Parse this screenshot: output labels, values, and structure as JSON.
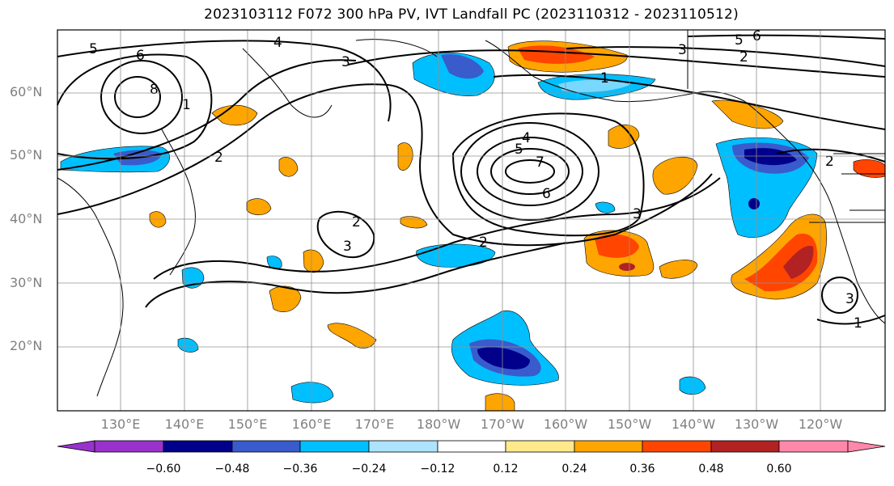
{
  "title": "2023103112 F072 300 hPa PV, IVT Landfall PC (2023110312 - 2023110512)",
  "latitude_labels": [
    "60°N",
    "50°N",
    "40°N",
    "30°N",
    "20°N"
  ],
  "longitude_labels": [
    "130°E",
    "140°E",
    "150°E",
    "160°E",
    "170°E",
    "180°W",
    "170°W",
    "160°W",
    "150°W",
    "140°W",
    "130°W",
    "120°W"
  ],
  "colorbar": {
    "tick_labels": [
      "−0.60",
      "−0.48",
      "−0.36",
      "−0.24",
      "−0.12",
      "0.12",
      "0.24",
      "0.36",
      "0.48",
      "0.60"
    ],
    "ticks": [
      -0.6,
      -0.48,
      -0.36,
      -0.24,
      -0.12,
      0.12,
      0.24,
      0.36,
      0.48,
      0.6
    ],
    "colors": [
      "#9932CC",
      "#00008B",
      "#3A5BCC",
      "#00BFFF",
      "#ADE3FF",
      "#FFFFFF",
      "#FFE98A",
      "#FFA500",
      "#FF4500",
      "#B22222",
      "#FF88AA"
    ],
    "extend": "both"
  },
  "contour_labels": [
    "5",
    "6",
    "8",
    "4",
    "3",
    "1",
    "2",
    "7",
    "4",
    "5",
    "6",
    "2",
    "3",
    "1",
    "5",
    "6",
    "3",
    "2",
    "2",
    "3",
    "1",
    "2",
    "3"
  ],
  "colors": {
    "land_outline": "#000000",
    "grid": "#909090",
    "contour": "#000000"
  }
}
